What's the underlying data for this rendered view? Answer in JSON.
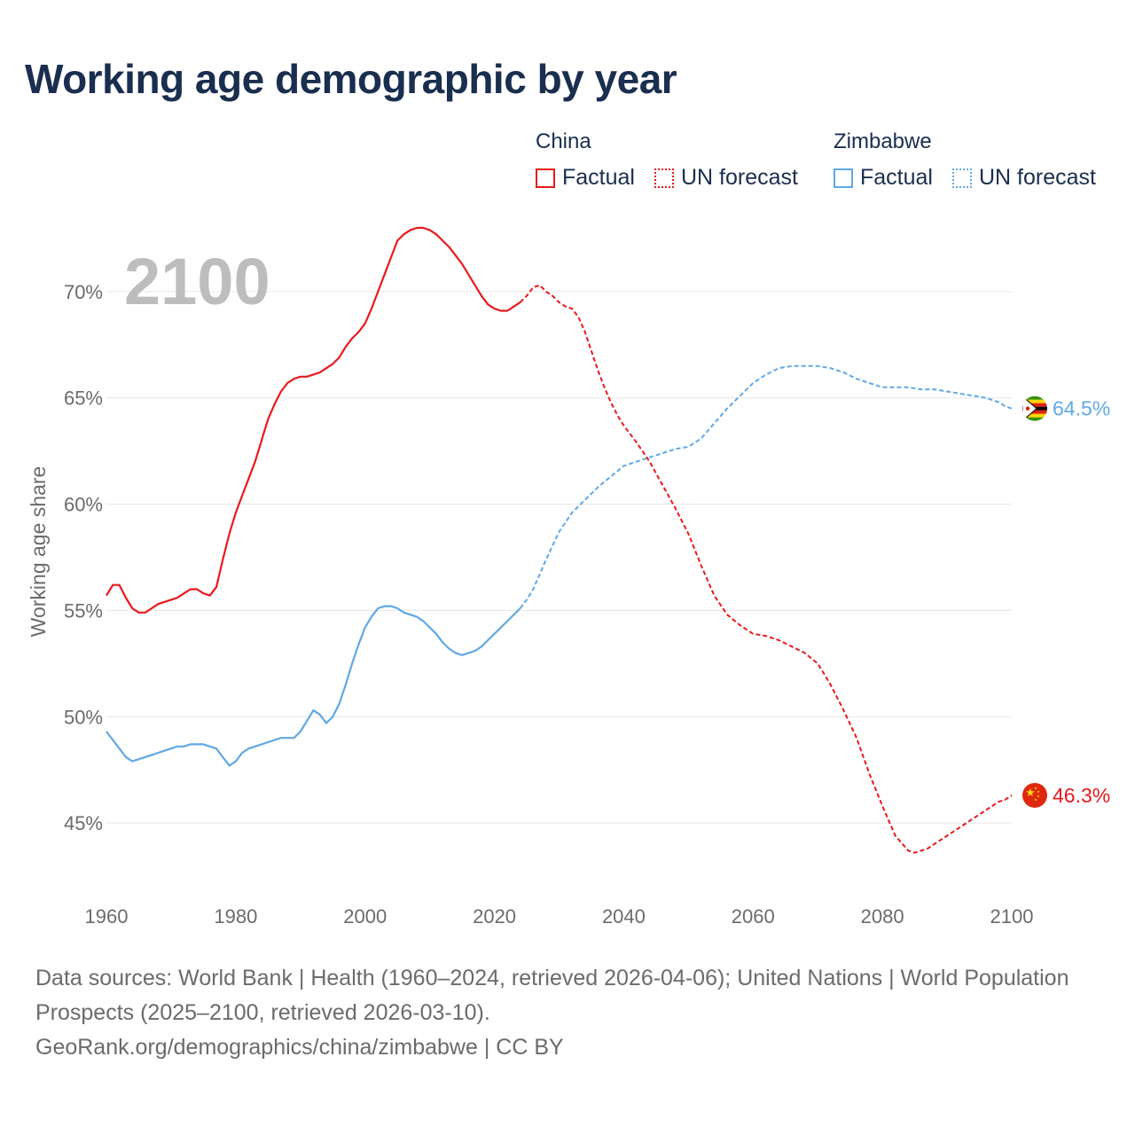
{
  "title": "Working age demographic by year",
  "legend": {
    "china": {
      "name": "China",
      "factual": "Factual",
      "forecast": "UN forecast",
      "color": "#e8191d"
    },
    "zimbabwe": {
      "name": "Zimbabwe",
      "factual": "Factual",
      "forecast": "UN forecast",
      "color": "#5fa8e6"
    }
  },
  "footer": {
    "line1": "Data sources: World Bank | Health (1960–2024, retrieved 2026-04-06); United Nations | World Population Prospects (2025–2100, retrieved 2026-03-10).",
    "line2": "GeoRank.org/demographics/china/zimbabwe | CC BY"
  },
  "chart_data": {
    "type": "line",
    "year_marker": "2100",
    "ylabel": "Working age share",
    "xlim": [
      1960,
      2100
    ],
    "ylim": [
      41.5,
      73.5
    ],
    "xticks": [
      1960,
      1980,
      2000,
      2020,
      2040,
      2060,
      2080,
      2100
    ],
    "yticks": [
      45,
      50,
      55,
      60,
      65,
      70
    ],
    "ytick_labels": [
      "45%",
      "50%",
      "55%",
      "60%",
      "65%",
      "70%"
    ],
    "grid": true,
    "series": [
      {
        "name": "China",
        "color": "#e8191d",
        "end_label": "46.3%",
        "factual": {
          "x": [
            1960,
            1961,
            1962,
            1963,
            1964,
            1965,
            1966,
            1967,
            1968,
            1969,
            1970,
            1971,
            1972,
            1973,
            1974,
            1975,
            1976,
            1977,
            1978,
            1979,
            1980,
            1981,
            1982,
            1983,
            1984,
            1985,
            1986,
            1987,
            1988,
            1989,
            1990,
            1991,
            1992,
            1993,
            1994,
            1995,
            1996,
            1997,
            1998,
            1999,
            2000,
            2001,
            2002,
            2003,
            2004,
            2005,
            2006,
            2007,
            2008,
            2009,
            2010,
            2011,
            2012,
            2013,
            2014,
            2015,
            2016,
            2017,
            2018,
            2019,
            2020,
            2021,
            2022,
            2023,
            2024
          ],
          "y": [
            55.7,
            56.2,
            56.2,
            55.6,
            55.1,
            54.9,
            54.9,
            55.1,
            55.3,
            55.4,
            55.5,
            55.6,
            55.8,
            56.0,
            56.0,
            55.8,
            55.7,
            56.1,
            57.4,
            58.6,
            59.6,
            60.4,
            61.2,
            62.0,
            63.0,
            64.0,
            64.7,
            65.3,
            65.7,
            65.9,
            66.0,
            66.0,
            66.1,
            66.2,
            66.4,
            66.6,
            66.9,
            67.4,
            67.8,
            68.1,
            68.5,
            69.2,
            70.0,
            70.8,
            71.6,
            72.4,
            72.7,
            72.9,
            73.0,
            73.0,
            72.9,
            72.7,
            72.4,
            72.1,
            71.7,
            71.3,
            70.8,
            70.3,
            69.8,
            69.4,
            69.2,
            69.1,
            69.1,
            69.3,
            69.5
          ]
        },
        "forecast": {
          "x": [
            2024,
            2025,
            2026,
            2027,
            2028,
            2029,
            2030,
            2031,
            2032,
            2033,
            2034,
            2035,
            2036,
            2037,
            2038,
            2039,
            2040,
            2042,
            2044,
            2046,
            2048,
            2050,
            2052,
            2054,
            2056,
            2058,
            2060,
            2062,
            2064,
            2066,
            2068,
            2070,
            2072,
            2074,
            2076,
            2078,
            2080,
            2082,
            2084,
            2085,
            2086,
            2087,
            2088,
            2090,
            2092,
            2094,
            2096,
            2098,
            2099,
            2100
          ],
          "y": [
            69.5,
            69.8,
            70.2,
            70.3,
            70.0,
            69.8,
            69.5,
            69.3,
            69.2,
            68.8,
            68.1,
            67.2,
            66.3,
            65.5,
            64.8,
            64.2,
            63.7,
            62.9,
            62.0,
            60.9,
            59.8,
            58.6,
            57.1,
            55.7,
            54.8,
            54.3,
            53.9,
            53.8,
            53.6,
            53.3,
            53.0,
            52.5,
            51.5,
            50.3,
            49.0,
            47.3,
            45.8,
            44.4,
            43.7,
            43.6,
            43.7,
            43.8,
            44.0,
            44.4,
            44.8,
            45.2,
            45.6,
            46.0,
            46.1,
            46.3
          ]
        }
      },
      {
        "name": "Zimbabwe",
        "color": "#5fa8e6",
        "end_label": "64.5%",
        "factual": {
          "x": [
            1960,
            1961,
            1962,
            1963,
            1964,
            1965,
            1966,
            1967,
            1968,
            1969,
            1970,
            1971,
            1972,
            1973,
            1974,
            1975,
            1976,
            1977,
            1978,
            1979,
            1980,
            1981,
            1982,
            1983,
            1984,
            1985,
            1986,
            1987,
            1988,
            1989,
            1990,
            1991,
            1992,
            1993,
            1994,
            1995,
            1996,
            1997,
            1998,
            1999,
            2000,
            2001,
            2002,
            2003,
            2004,
            2005,
            2006,
            2007,
            2008,
            2009,
            2010,
            2011,
            2012,
            2013,
            2014,
            2015,
            2016,
            2017,
            2018,
            2019,
            2020,
            2021,
            2022,
            2023,
            2024
          ],
          "y": [
            49.3,
            48.9,
            48.5,
            48.1,
            47.9,
            48.0,
            48.1,
            48.2,
            48.3,
            48.4,
            48.5,
            48.6,
            48.6,
            48.7,
            48.7,
            48.7,
            48.6,
            48.5,
            48.1,
            47.7,
            47.9,
            48.3,
            48.5,
            48.6,
            48.7,
            48.8,
            48.9,
            49.0,
            49.0,
            49.0,
            49.3,
            49.8,
            50.3,
            50.1,
            49.7,
            50.0,
            50.6,
            51.5,
            52.5,
            53.4,
            54.2,
            54.7,
            55.1,
            55.2,
            55.2,
            55.1,
            54.9,
            54.8,
            54.7,
            54.5,
            54.2,
            53.9,
            53.5,
            53.2,
            53.0,
            52.9,
            53.0,
            53.1,
            53.3,
            53.6,
            53.9,
            54.2,
            54.5,
            54.8,
            55.1
          ]
        },
        "forecast": {
          "x": [
            2024,
            2025,
            2026,
            2028,
            2030,
            2032,
            2034,
            2036,
            2038,
            2040,
            2042,
            2044,
            2046,
            2048,
            2050,
            2052,
            2054,
            2056,
            2058,
            2060,
            2062,
            2064,
            2066,
            2068,
            2070,
            2072,
            2074,
            2076,
            2078,
            2080,
            2082,
            2084,
            2086,
            2088,
            2090,
            2092,
            2094,
            2096,
            2098,
            2099,
            2100
          ],
          "y": [
            55.1,
            55.5,
            56.0,
            57.4,
            58.7,
            59.6,
            60.2,
            60.8,
            61.3,
            61.8,
            62.0,
            62.2,
            62.4,
            62.6,
            62.7,
            63.1,
            63.8,
            64.5,
            65.1,
            65.7,
            66.1,
            66.4,
            66.5,
            66.5,
            66.5,
            66.4,
            66.2,
            65.9,
            65.7,
            65.5,
            65.5,
            65.5,
            65.4,
            65.4,
            65.3,
            65.2,
            65.1,
            65.0,
            64.8,
            64.6,
            64.5
          ]
        }
      }
    ]
  }
}
